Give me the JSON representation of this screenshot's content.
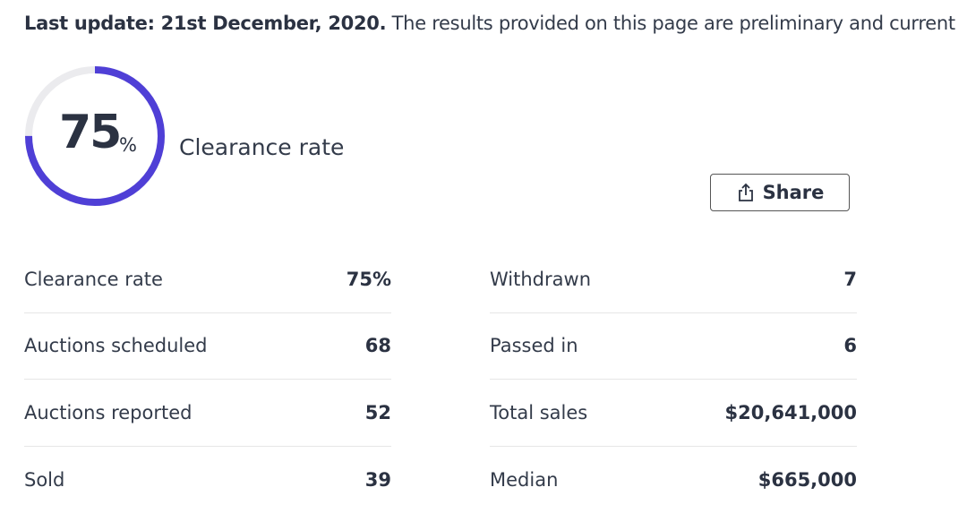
{
  "header": {
    "date_text": "Last update: 21st December, 2020.",
    "note": "The results provided on this page are preliminary and current"
  },
  "gauge": {
    "value": 75,
    "unit": "%",
    "range": [
      0,
      100
    ],
    "label": "Clearance rate",
    "color": "#4f3fd6",
    "track_color": "#ebebee"
  },
  "share_button": "Share",
  "stats": {
    "left": [
      [
        "Clearance rate",
        "75%"
      ],
      [
        "Auctions scheduled",
        "68"
      ],
      [
        "Auctions reported",
        "52"
      ],
      [
        "Sold",
        "39"
      ]
    ],
    "right": [
      [
        "Withdrawn",
        "7"
      ],
      [
        "Passed in",
        "6"
      ],
      [
        "Total sales",
        "$20,641,000"
      ],
      [
        "Median",
        "$665,000"
      ]
    ]
  }
}
